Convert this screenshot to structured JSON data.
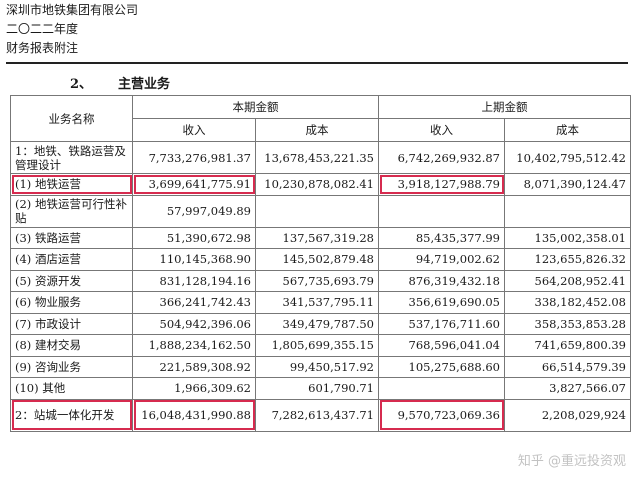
{
  "header": {
    "company": "深圳市地铁集团有限公司",
    "year": "二〇二二年度",
    "doc_title": "财务报表附注"
  },
  "section": {
    "number": "2、",
    "title": "主营业务"
  },
  "table": {
    "col_name": "业务名称",
    "group_current": "本期金额",
    "group_prior": "上期金额",
    "revenue": "收入",
    "cost": "成本",
    "rows": [
      {
        "name": "1：地铁、铁路运营及管理设计",
        "cur_rev": "7,733,276,981.37",
        "cur_cost": "13,678,453,221.35",
        "pri_rev": "6,742,269,932.87",
        "pri_cost": "10,402,795,512.42"
      },
      {
        "name": "(1) 地铁运营",
        "cur_rev": "3,699,641,775.91",
        "cur_cost": "10,230,878,082.41",
        "pri_rev": "3,918,127,988.79",
        "pri_cost": "8,071,390,124.47"
      },
      {
        "name": "(2) 地铁运营可行性补贴",
        "cur_rev": "57,997,049.89",
        "cur_cost": "",
        "pri_rev": "",
        "pri_cost": ""
      },
      {
        "name": "(3) 铁路运营",
        "cur_rev": "51,390,672.98",
        "cur_cost": "137,567,319.28",
        "pri_rev": "85,435,377.99",
        "pri_cost": "135,002,358.01"
      },
      {
        "name": "(4) 酒店运营",
        "cur_rev": "110,145,368.90",
        "cur_cost": "145,502,879.48",
        "pri_rev": "94,719,002.62",
        "pri_cost": "123,655,826.32"
      },
      {
        "name": "(5) 资源开发",
        "cur_rev": "831,128,194.16",
        "cur_cost": "567,735,693.79",
        "pri_rev": "876,319,432.18",
        "pri_cost": "564,208,952.41"
      },
      {
        "name": "(6) 物业服务",
        "cur_rev": "366,241,742.43",
        "cur_cost": "341,537,795.11",
        "pri_rev": "356,619,690.05",
        "pri_cost": "338,182,452.08"
      },
      {
        "name": "(7) 市政设计",
        "cur_rev": "504,942,396.06",
        "cur_cost": "349,479,787.50",
        "pri_rev": "537,176,711.60",
        "pri_cost": "358,353,853.28"
      },
      {
        "name": "(8) 建材交易",
        "cur_rev": "1,888,234,162.50",
        "cur_cost": "1,805,699,355.15",
        "pri_rev": "768,596,041.04",
        "pri_cost": "741,659,800.39"
      },
      {
        "name": "(9) 咨询业务",
        "cur_rev": "221,589,308.92",
        "cur_cost": "99,450,517.92",
        "pri_rev": "105,275,688.60",
        "pri_cost": "66,514,579.39"
      },
      {
        "name": "(10) 其他",
        "cur_rev": "1,966,309.62",
        "cur_cost": "601,790.71",
        "pri_rev": "",
        "pri_cost": "3,827,566.07"
      },
      {
        "name": "2：站城一体化开发",
        "cur_rev": "16,048,431,990.88",
        "cur_cost": "7,282,613,437.71",
        "pri_rev": "9,570,723,069.36",
        "pri_cost": "2,208,029,924"
      }
    ]
  },
  "watermark": "知乎 @重远投资观",
  "highlight_color": "#d62b4f"
}
